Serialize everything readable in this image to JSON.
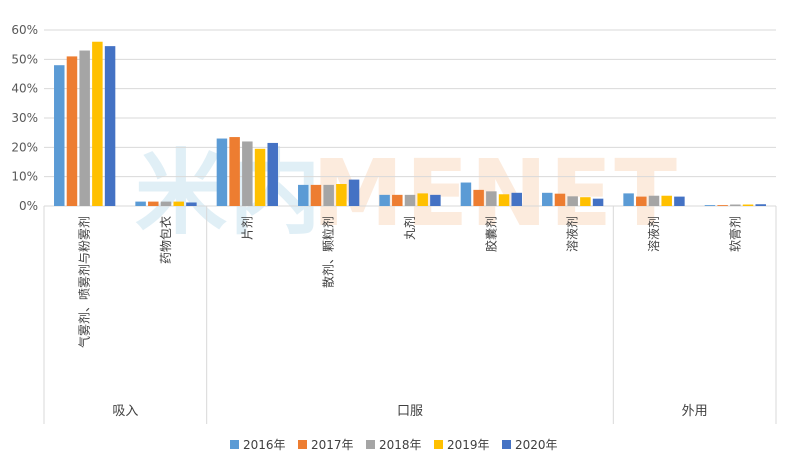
{
  "chart_data": {
    "type": "bar",
    "title": "",
    "watermark": "米内MENET",
    "ylim": [
      0,
      60
    ],
    "yticks": [
      "0%",
      "10%",
      "20%",
      "30%",
      "40%",
      "50%",
      "60%"
    ],
    "yticks_values": [
      0,
      10,
      20,
      30,
      40,
      50,
      60
    ],
    "categories": [
      "气雾剂、喷雾剂与粉雾剂",
      "药物包衣",
      "片剂",
      "散剂、颗粒剂",
      "丸剂",
      "胶囊剂",
      "溶液剂",
      "溶液剂",
      "软膏剂"
    ],
    "groups": [
      {
        "label": "吸入",
        "categories": 2
      },
      {
        "label": "口服",
        "categories": 5
      },
      {
        "label": "外用",
        "categories": 2
      }
    ],
    "series": [
      {
        "name": "2016年",
        "color": "#5B9BD5",
        "values": [
          48,
          1.5,
          23,
          7.2,
          3.8,
          8,
          4.5,
          4.3,
          0.3
        ]
      },
      {
        "name": "2017年",
        "color": "#ED7D31",
        "values": [
          51,
          1.5,
          23.5,
          7.2,
          3.8,
          5.5,
          4.2,
          3.2,
          0.3
        ]
      },
      {
        "name": "2018年",
        "color": "#A5A5A5",
        "values": [
          53,
          1.5,
          22,
          7.2,
          3.8,
          5,
          3.3,
          3.5,
          0.5
        ]
      },
      {
        "name": "2019年",
        "color": "#FFC000",
        "values": [
          56,
          1.5,
          19.5,
          7.5,
          4.3,
          4,
          3,
          3.5,
          0.5
        ]
      },
      {
        "name": "2020年",
        "color": "#4472C4",
        "values": [
          54.5,
          1.2,
          21.5,
          9,
          3.8,
          4.5,
          2.5,
          3.2,
          0.6
        ]
      }
    ]
  }
}
